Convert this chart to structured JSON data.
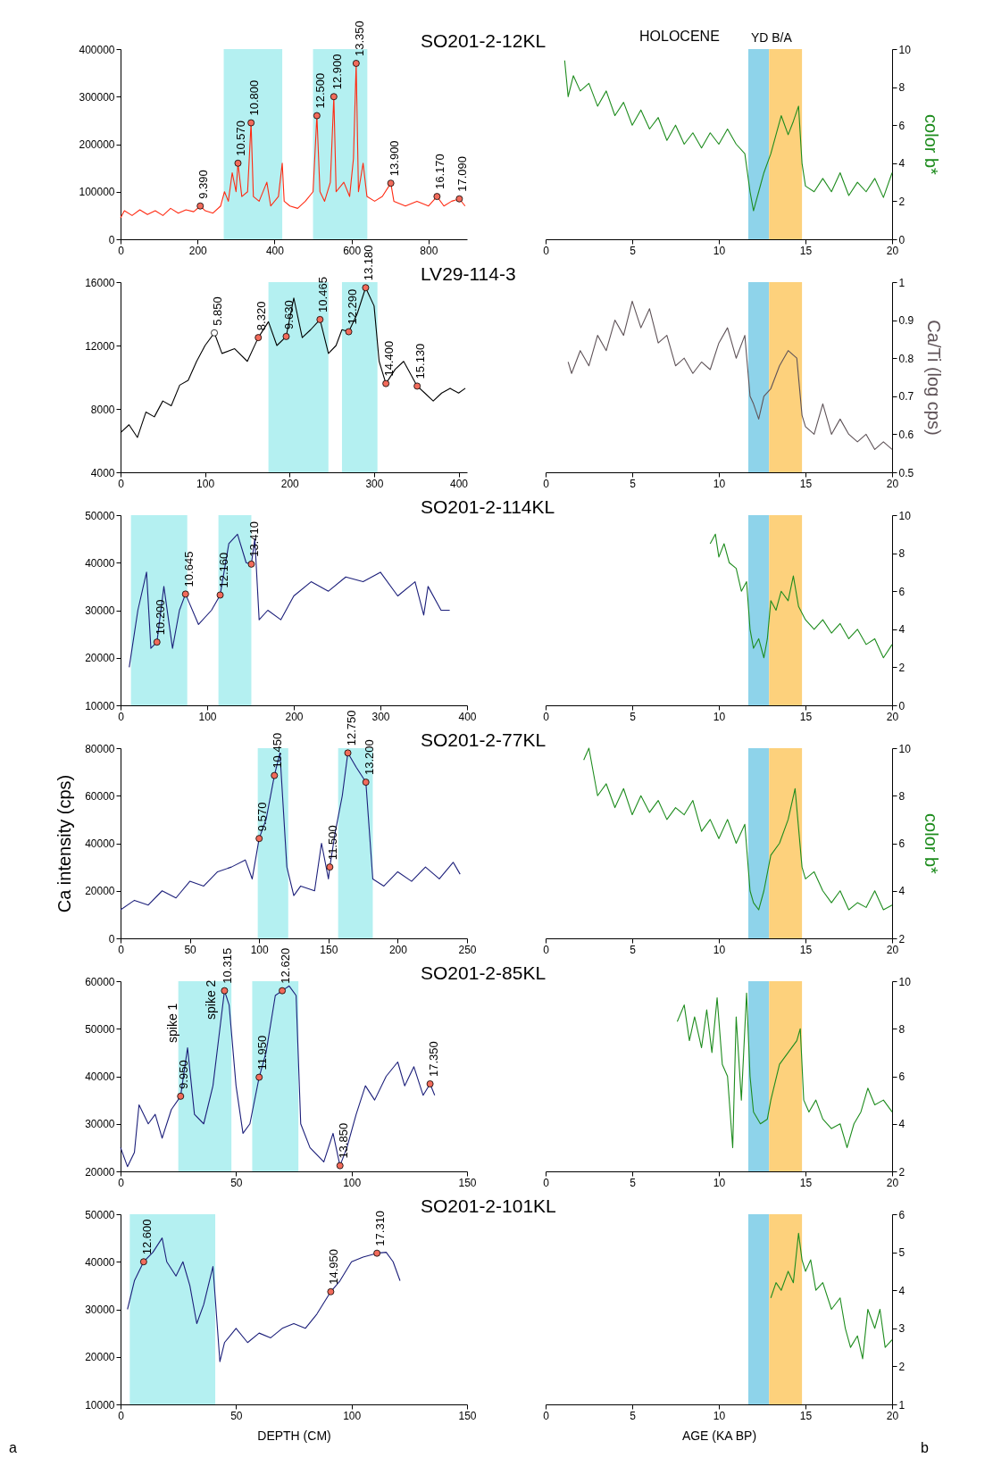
{
  "chart_data": [
    {
      "type": "line",
      "title": "SO201-2-12KL",
      "xlim": [
        0,
        900
      ],
      "xticks": [
        0,
        200,
        400,
        600,
        800
      ],
      "ylim": [
        0,
        400000
      ],
      "yticks": [
        0,
        100000,
        200000,
        300000,
        400000
      ],
      "bands": [
        {
          "axis": "x",
          "from": 268,
          "to": 420,
          "color": "#b4f0f1"
        },
        {
          "axis": "x",
          "from": 500,
          "to": 641,
          "color": "#b4f0f1"
        }
      ],
      "series": [
        {
          "type": "line",
          "color": "#ff2a12",
          "x": [
            0,
            10,
            30,
            50,
            70,
            90,
            110,
            130,
            150,
            170,
            190,
            207,
            220,
            240,
            260,
            270,
            280,
            290,
            300,
            305,
            315,
            330,
            339,
            345,
            360,
            380,
            390,
            410,
            420,
            425,
            440,
            460,
            480,
            500,
            510,
            518,
            530,
            545,
            554,
            560,
            580,
            595,
            605,
            612,
            618,
            630,
            640,
            660,
            680,
            702,
            710,
            740,
            770,
            800,
            822,
            840,
            860,
            880,
            895
          ],
          "values": [
            45000,
            60000,
            50000,
            62000,
            52000,
            60000,
            50000,
            65000,
            55000,
            62000,
            58000,
            70000,
            60000,
            55000,
            70000,
            100000,
            80000,
            140000,
            100000,
            160000,
            90000,
            100000,
            245000,
            90000,
            80000,
            120000,
            70000,
            90000,
            160000,
            80000,
            70000,
            65000,
            80000,
            100000,
            260000,
            100000,
            80000,
            120000,
            300000,
            100000,
            120000,
            90000,
            170000,
            370000,
            100000,
            160000,
            90000,
            80000,
            90000,
            118000,
            80000,
            70000,
            80000,
            70000,
            90000,
            70000,
            80000,
            85000,
            70000
          ]
        },
        {
          "type": "scatter",
          "marker": "circle",
          "colors": [
            "#f26b5b",
            "#f26b5b",
            "#f26b5b",
            "#f26b5b",
            "#f26b5b",
            "#f26b5b",
            "#f26b5b",
            "#f26b5b",
            "#f26b5b"
          ],
          "x": [
            207,
            305,
            339,
            510,
            554,
            612,
            702,
            822,
            880
          ],
          "values": [
            70000,
            160000,
            245000,
            260000,
            300000,
            370000,
            118000,
            90000,
            85000
          ]
        }
      ],
      "annotations": [
        {
          "text": "9.390",
          "x": 207,
          "y": 70000
        },
        {
          "text": "10.570",
          "x": 305,
          "y": 160000
        },
        {
          "text": "10.800",
          "x": 339,
          "y": 245000
        },
        {
          "text": "12.500",
          "x": 510,
          "y": 260000
        },
        {
          "text": "12.900",
          "x": 554,
          "y": 300000
        },
        {
          "text": "13.350",
          "x": 612,
          "y": 370000
        },
        {
          "text": "13.900",
          "x": 702,
          "y": 118000
        },
        {
          "text": "16.170",
          "x": 822,
          "y": 90000
        },
        {
          "text": "17.090",
          "x": 880,
          "y": 85000
        }
      ]
    },
    {
      "type": "line",
      "xlim": [
        0,
        20
      ],
      "xticks": [
        0,
        5,
        10,
        15,
        20
      ],
      "y2lim": [
        0,
        10
      ],
      "y2ticks": [
        0,
        2,
        4,
        6,
        8,
        10
      ],
      "y2label": "color b*",
      "annotations": [
        "HOLOCENE"
      ],
      "bands": [
        {
          "axis": "x",
          "from": 11.7,
          "to": 12.9,
          "label": "YD",
          "color": "#8ed3ea"
        },
        {
          "axis": "x",
          "from": 12.9,
          "to": 14.8,
          "label": "B/A",
          "color": "#fdd17c"
        }
      ],
      "series": [
        {
          "type": "line",
          "axis": "y2",
          "color": "#1e8c1e",
          "x": [
            1.1,
            1.3,
            1.6,
            2,
            2.5,
            3,
            3.5,
            4,
            4.5,
            5,
            5.5,
            6,
            6.5,
            7,
            7.5,
            8,
            8.5,
            9,
            9.5,
            10,
            10.5,
            11,
            11.5,
            11.8,
            12,
            12.3,
            12.6,
            13,
            13.3,
            13.6,
            14,
            14.3,
            14.6,
            14.8,
            15,
            15.5,
            16,
            16.5,
            17,
            17.5,
            18,
            18.5,
            19,
            19.5,
            20
          ],
          "values": [
            9.4,
            7.5,
            8.6,
            7.8,
            8.2,
            7,
            7.8,
            6.5,
            7.2,
            6,
            6.8,
            5.8,
            6.4,
            5.2,
            6,
            5,
            5.6,
            4.8,
            5.6,
            5,
            5.8,
            5,
            4.5,
            2.5,
            1.5,
            2.5,
            3.5,
            4.5,
            5.5,
            6.5,
            5.5,
            6.2,
            7,
            4,
            2.8,
            2.5,
            3.2,
            2.5,
            3.5,
            2.3,
            3,
            2.5,
            3.2,
            2.2,
            3.5
          ]
        }
      ]
    },
    {
      "type": "line",
      "title": "LV29-114-3",
      "xlim": [
        0,
        410
      ],
      "xticks": [
        0,
        100,
        200,
        300,
        400
      ],
      "ylim": [
        4000,
        16000
      ],
      "yticks": [
        4000,
        8000,
        12000,
        16000
      ],
      "bands": [
        {
          "axis": "x",
          "from": 175,
          "to": 246,
          "color": "#b4f0f1"
        },
        {
          "axis": "x",
          "from": 262,
          "to": 304,
          "color": "#b4f0f1"
        }
      ],
      "series": [
        {
          "type": "line",
          "color": "#000000",
          "x": [
            0,
            10,
            20,
            30,
            40,
            50,
            60,
            70,
            80,
            90,
            100,
            111,
            120,
            135,
            150,
            163,
            175,
            185,
            196,
            205,
            215,
            225,
            236,
            246,
            255,
            262,
            270,
            280,
            290,
            300,
            306,
            314,
            325,
            335,
            351,
            360,
            370,
            380,
            390,
            400,
            408
          ],
          "values": [
            6500,
            7000,
            6200,
            7800,
            7500,
            8500,
            8200,
            9500,
            9800,
            11000,
            12000,
            12800,
            11500,
            11800,
            11000,
            12500,
            13500,
            12000,
            12570,
            15000,
            12500,
            13000,
            13640,
            11500,
            12000,
            13000,
            12870,
            14000,
            15650,
            14500,
            11000,
            9600,
            10500,
            11000,
            9440,
            9000,
            8500,
            9000,
            9300,
            9000,
            9300
          ]
        },
        {
          "type": "scatter",
          "marker": "circle",
          "colors": [
            "#ffffff",
            "#f26b5b",
            "#f26b5b",
            "#f26b5b",
            "#f26b5b",
            "#f26b5b",
            "#f26b5b",
            "#f26b5b"
          ],
          "x": [
            111,
            163,
            196,
            236,
            270,
            290,
            314,
            351
          ],
          "values": [
            12800,
            12500,
            12570,
            13640,
            12870,
            15650,
            9600,
            9440
          ]
        }
      ],
      "annotations": [
        {
          "text": "5.850",
          "x": 111,
          "y": 12800
        },
        {
          "text": "8.320",
          "x": 163,
          "y": 12500
        },
        {
          "text": "9.630",
          "x": 196,
          "y": 12570
        },
        {
          "text": "10.465",
          "x": 236,
          "y": 13640
        },
        {
          "text": "12.290",
          "x": 270,
          "y": 12870
        },
        {
          "text": "13.180",
          "x": 290,
          "y": 15650
        },
        {
          "text": "14.400",
          "x": 314,
          "y": 9600
        },
        {
          "text": "15.130",
          "x": 351,
          "y": 9440
        }
      ]
    },
    {
      "type": "line",
      "xlim": [
        0,
        20
      ],
      "xticks": [
        0,
        5,
        10,
        15,
        20
      ],
      "y2lim": [
        0.5,
        1
      ],
      "y2ticks": [
        0.5,
        0.6,
        0.7,
        0.8,
        0.9,
        1
      ],
      "y2label": "Ca/Ti  (log cps)",
      "bands": [
        {
          "axis": "x",
          "from": 11.7,
          "to": 12.9,
          "color": "#8ed3ea"
        },
        {
          "axis": "x",
          "from": 12.9,
          "to": 14.8,
          "color": "#fdd17c"
        }
      ],
      "series": [
        {
          "type": "line",
          "axis": "y2",
          "color": "#5f5358",
          "x": [
            1.3,
            1.5,
            2,
            2.5,
            3,
            3.5,
            4,
            4.5,
            5,
            5.5,
            6,
            6.5,
            7,
            7.5,
            8,
            8.5,
            9,
            9.5,
            10,
            10.5,
            11,
            11.5,
            11.8,
            12,
            12.3,
            12.6,
            13,
            13.5,
            14,
            14.5,
            14.8,
            15,
            15.5,
            16,
            16.5,
            17,
            17.5,
            18,
            18.5,
            19,
            19.5,
            20
          ],
          "values": [
            0.79,
            0.76,
            0.82,
            0.78,
            0.86,
            0.82,
            0.9,
            0.86,
            0.95,
            0.88,
            0.93,
            0.84,
            0.86,
            0.78,
            0.8,
            0.76,
            0.79,
            0.77,
            0.84,
            0.88,
            0.8,
            0.86,
            0.7,
            0.68,
            0.64,
            0.7,
            0.72,
            0.78,
            0.82,
            0.8,
            0.65,
            0.62,
            0.6,
            0.68,
            0.6,
            0.64,
            0.6,
            0.58,
            0.6,
            0.56,
            0.58,
            0.56
          ]
        }
      ]
    },
    {
      "type": "line",
      "title": "SO201-2-114KL",
      "xlim": [
        0,
        400
      ],
      "xticks": [
        0,
        100,
        200,
        300,
        400
      ],
      "ylim": [
        10000,
        50000
      ],
      "yticks": [
        10000,
        20000,
        30000,
        40000,
        50000
      ],
      "bands": [
        {
          "axis": "x",
          "from": 12,
          "to": 77,
          "color": "#b4f0f1"
        },
        {
          "axis": "x",
          "from": 113,
          "to": 151,
          "color": "#b4f0f1"
        }
      ],
      "series": [
        {
          "type": "line",
          "color": "#1c1f7a",
          "x": [
            10,
            20,
            30,
            35,
            42,
            50,
            60,
            68,
            75,
            90,
            105,
            115,
            125,
            135,
            145,
            151,
            155,
            160,
            170,
            185,
            200,
            220,
            240,
            260,
            280,
            300,
            320,
            340,
            350,
            355,
            370,
            380
          ],
          "values": [
            18000,
            30000,
            38000,
            22000,
            23300,
            35000,
            22000,
            30000,
            33400,
            27000,
            30000,
            33200,
            44000,
            46000,
            40000,
            39700,
            45000,
            28000,
            30000,
            28000,
            33000,
            36000,
            34000,
            37000,
            36000,
            38000,
            33000,
            36000,
            29000,
            35000,
            30000,
            30000
          ]
        },
        {
          "type": "scatter",
          "marker": "circle",
          "colors": [
            "#f26b5b",
            "#f26b5b",
            "#f26b5b",
            "#f26b5b"
          ],
          "x": [
            42,
            75,
            115,
            151
          ],
          "values": [
            23300,
            33400,
            33200,
            39700
          ]
        }
      ],
      "annotations": [
        {
          "text": "10.200",
          "x": 42,
          "y": 23300
        },
        {
          "text": "10.645",
          "x": 75,
          "y": 33400
        },
        {
          "text": "12.160",
          "x": 115,
          "y": 33200
        },
        {
          "text": "13.410",
          "x": 151,
          "y": 39700
        }
      ]
    },
    {
      "type": "line",
      "xlim": [
        0,
        20
      ],
      "xticks": [
        0,
        5,
        10,
        15,
        20
      ],
      "y2lim": [
        0,
        10
      ],
      "y2ticks": [
        0,
        2,
        4,
        6,
        8,
        10
      ],
      "bands": [
        {
          "axis": "x",
          "from": 11.7,
          "to": 12.9,
          "color": "#8ed3ea"
        },
        {
          "axis": "x",
          "from": 12.9,
          "to": 14.8,
          "color": "#fdd17c"
        }
      ],
      "series": [
        {
          "type": "line",
          "axis": "y2",
          "color": "#1e8c1e",
          "x": [
            9.5,
            9.8,
            10,
            10.3,
            10.6,
            11,
            11.3,
            11.6,
            11.8,
            12,
            12.3,
            12.6,
            12.8,
            13,
            13.3,
            13.6,
            14,
            14.3,
            14.6,
            15,
            15.5,
            16,
            16.5,
            17,
            17.5,
            18,
            18.5,
            19,
            19.5,
            20
          ],
          "values": [
            8.5,
            9,
            7.8,
            8.5,
            7.5,
            7.2,
            6,
            6.5,
            4,
            3,
            3.5,
            2.5,
            3.5,
            5.5,
            5,
            6,
            5.5,
            6.8,
            5.2,
            4.5,
            4,
            4.5,
            3.8,
            4.3,
            3.5,
            4,
            3.2,
            3.5,
            2.5,
            3.2
          ]
        }
      ]
    },
    {
      "type": "line",
      "title": "SO201-2-77KL",
      "ylabel": "Ca intensity (cps)",
      "xlim": [
        0,
        250
      ],
      "xticks": [
        0,
        50,
        100,
        150,
        200,
        250
      ],
      "ylim": [
        0,
        80000
      ],
      "yticks": [
        0,
        20000,
        40000,
        60000,
        80000
      ],
      "bands": [
        {
          "axis": "x",
          "from": 99,
          "to": 121,
          "color": "#b4f0f1"
        },
        {
          "axis": "x",
          "from": 157,
          "to": 182,
          "color": "#b4f0f1"
        }
      ],
      "series": [
        {
          "type": "line",
          "color": "#1c1f7a",
          "x": [
            0,
            10,
            20,
            30,
            40,
            50,
            60,
            70,
            80,
            90,
            95,
            100,
            105,
            111,
            115,
            120,
            125,
            130,
            140,
            145,
            150,
            151,
            155,
            160,
            164,
            170,
            177,
            182,
            190,
            200,
            210,
            220,
            230,
            240,
            245
          ],
          "values": [
            12000,
            16000,
            14000,
            20000,
            17000,
            24000,
            22000,
            28000,
            30000,
            33000,
            25000,
            42000,
            50000,
            68500,
            78000,
            30000,
            18000,
            22000,
            20000,
            40000,
            25000,
            30000,
            45000,
            60000,
            78000,
            72000,
            65700,
            25000,
            22000,
            28000,
            24000,
            30000,
            25000,
            32000,
            27000
          ]
        },
        {
          "type": "scatter",
          "marker": "circle",
          "colors": [
            "#f26b5b",
            "#f26b5b",
            "#f26b5b",
            "#f26b5b",
            "#f26b5b"
          ],
          "x": [
            100,
            111,
            151,
            164,
            177
          ],
          "values": [
            42000,
            68500,
            30000,
            78000,
            65700
          ]
        }
      ],
      "annotations": [
        {
          "text": "9.570",
          "x": 100,
          "y": 42000
        },
        {
          "text": "10.450",
          "x": 111,
          "y": 68500
        },
        {
          "text": "11.500",
          "x": 151,
          "y": 30000
        },
        {
          "text": "12.750",
          "x": 164,
          "y": 78000
        },
        {
          "text": "13.200",
          "x": 177,
          "y": 65700
        }
      ]
    },
    {
      "type": "line",
      "xlim": [
        0,
        20
      ],
      "xticks": [
        0,
        5,
        10,
        15,
        20
      ],
      "y2lim": [
        2,
        10
      ],
      "y2ticks": [
        2,
        4,
        6,
        8,
        10
      ],
      "y2label": "color b*",
      "bands": [
        {
          "axis": "x",
          "from": 11.7,
          "to": 12.9,
          "color": "#8ed3ea"
        },
        {
          "axis": "x",
          "from": 12.9,
          "to": 14.8,
          "color": "#fdd17c"
        }
      ],
      "series": [
        {
          "type": "line",
          "axis": "y2",
          "color": "#1e8c1e",
          "x": [
            2.2,
            2.5,
            3,
            3.5,
            4,
            4.5,
            5,
            5.5,
            6,
            6.5,
            7,
            7.5,
            8,
            8.5,
            9,
            9.5,
            10,
            10.5,
            11,
            11.5,
            11.8,
            12,
            12.3,
            12.6,
            13,
            13.5,
            14,
            14.4,
            14.8,
            15,
            15.5,
            16,
            16.5,
            17,
            17.5,
            18,
            18.5,
            19,
            19.5,
            20
          ],
          "values": [
            9.5,
            10,
            8,
            8.5,
            7.5,
            8.3,
            7.2,
            8,
            7.3,
            7.8,
            7,
            7.5,
            7.2,
            7.8,
            6.5,
            7,
            6.2,
            7,
            6,
            6.8,
            4,
            3.5,
            3.2,
            4,
            5.5,
            6,
            7,
            8.3,
            5,
            4.5,
            4.8,
            4,
            3.5,
            4,
            3.2,
            3.5,
            3.3,
            4,
            3.2,
            3.4
          ]
        }
      ]
    },
    {
      "type": "line",
      "title": "SO201-2-85KL",
      "xlim": [
        0,
        150
      ],
      "xticks": [
        0,
        50,
        100,
        150
      ],
      "ylim": [
        20000,
        60000
      ],
      "yticks": [
        20000,
        30000,
        40000,
        50000,
        60000
      ],
      "annotations": [
        "spike 1",
        "spike 2",
        {
          "text": "9.950",
          "x": 26,
          "y": 35800
        },
        {
          "text": "10.315",
          "x": 45,
          "y": 58000
        },
        {
          "text": "11.950",
          "x": 60,
          "y": 39800
        },
        {
          "text": "12.620",
          "x": 70,
          "y": 58000
        },
        {
          "text": "13.850",
          "x": 95,
          "y": 21200
        },
        {
          "text": "17.350",
          "x": 134,
          "y": 38400
        }
      ],
      "bands": [
        {
          "axis": "x",
          "from": 25,
          "to": 48,
          "color": "#b4f0f1"
        },
        {
          "axis": "x",
          "from": 57,
          "to": 77,
          "color": "#b4f0f1"
        }
      ],
      "series": [
        {
          "type": "line",
          "color": "#1c1f7a",
          "x": [
            0,
            3,
            6,
            8,
            12,
            15,
            18,
            22,
            26,
            29,
            32,
            36,
            40,
            43,
            45,
            47,
            50,
            53,
            56,
            60,
            63,
            67,
            70,
            73,
            76,
            78,
            82,
            88,
            92,
            95,
            98,
            102,
            106,
            110,
            115,
            120,
            123,
            127,
            131,
            134,
            136
          ],
          "values": [
            25000,
            21000,
            24000,
            34000,
            30000,
            32000,
            27000,
            33000,
            35800,
            46000,
            32000,
            30000,
            38000,
            50000,
            58000,
            55000,
            38000,
            28000,
            30000,
            39800,
            45000,
            57000,
            58000,
            59000,
            57000,
            30000,
            25000,
            22000,
            28000,
            21200,
            25000,
            32000,
            38000,
            35000,
            40000,
            43000,
            38000,
            42000,
            36000,
            38400,
            36000
          ]
        },
        {
          "type": "scatter",
          "marker": "circle",
          "colors": [
            "#f26b5b",
            "#f26b5b",
            "#f26b5b",
            "#f26b5b",
            "#f26b5b",
            "#f26b5b"
          ],
          "x": [
            26,
            45,
            60,
            70,
            95,
            134
          ],
          "values": [
            35800,
            58000,
            39800,
            58000,
            21200,
            38400
          ]
        }
      ]
    },
    {
      "type": "line",
      "xlim": [
        0,
        20
      ],
      "xticks": [
        0,
        5,
        10,
        15,
        20
      ],
      "y2lim": [
        2,
        10
      ],
      "y2ticks": [
        2,
        4,
        6,
        8,
        10
      ],
      "bands": [
        {
          "axis": "x",
          "from": 11.7,
          "to": 12.9,
          "color": "#8ed3ea"
        },
        {
          "axis": "x",
          "from": 12.9,
          "to": 14.8,
          "color": "#fdd17c"
        }
      ],
      "series": [
        {
          "type": "line",
          "axis": "y2",
          "color": "#1e8c1e",
          "x": [
            7.6,
            8,
            8.3,
            8.6,
            9,
            9.3,
            9.6,
            9.9,
            10.2,
            10.5,
            10.8,
            11,
            11.3,
            11.6,
            11.8,
            12,
            12.4,
            12.8,
            13,
            13.5,
            14,
            14.5,
            14.7,
            14.9,
            15.2,
            15.6,
            16,
            16.5,
            17,
            17.4,
            17.8,
            18.2,
            18.6,
            19,
            19.5,
            20
          ],
          "values": [
            8.3,
            9,
            7.5,
            8.5,
            7.2,
            8.8,
            7,
            9.3,
            6.5,
            6,
            3,
            8.5,
            5,
            9.5,
            6,
            4.5,
            4,
            4.2,
            5,
            6.5,
            7,
            7.5,
            8,
            5,
            4.5,
            5,
            4.2,
            3.8,
            4,
            3,
            4,
            4.5,
            5.5,
            4.8,
            5,
            4.5
          ]
        }
      ]
    },
    {
      "type": "line",
      "title": "SO201-2-101KL",
      "xlabel": "DEPTH (CM)",
      "xlim": [
        0,
        150
      ],
      "xticks": [
        0,
        50,
        100,
        150
      ],
      "ylim": [
        10000,
        50000
      ],
      "yticks": [
        10000,
        20000,
        30000,
        40000,
        50000
      ],
      "bands": [
        {
          "axis": "x",
          "from": 4,
          "to": 41,
          "color": "#b4f0f1"
        }
      ],
      "series": [
        {
          "type": "line",
          "color": "#1c1f7a",
          "x": [
            3,
            6,
            10,
            14,
            18,
            20,
            24,
            27,
            30,
            33,
            36,
            40,
            43,
            45,
            50,
            55,
            60,
            65,
            70,
            75,
            80,
            85,
            91,
            95,
            100,
            105,
            111,
            115,
            118,
            121
          ],
          "values": [
            30000,
            36000,
            40000,
            42000,
            45000,
            40000,
            37000,
            40000,
            35000,
            27000,
            31000,
            39000,
            19000,
            23000,
            26000,
            23000,
            25000,
            24000,
            26000,
            27000,
            26000,
            29000,
            33700,
            36000,
            40000,
            41000,
            41800,
            42000,
            40000,
            36000
          ]
        },
        {
          "type": "scatter",
          "marker": "circle",
          "colors": [
            "#f26b5b",
            "#f26b5b",
            "#f26b5b"
          ],
          "x": [
            10,
            91,
            111
          ],
          "values": [
            40000,
            33700,
            41800
          ]
        }
      ],
      "annotations": [
        "a",
        {
          "text": "12.600",
          "x": 10,
          "y": 40000
        },
        {
          "text": "14.950",
          "x": 91,
          "y": 33700
        },
        {
          "text": "17.310",
          "x": 111,
          "y": 41800
        }
      ]
    },
    {
      "type": "line",
      "xlabel": "AGE (KA BP)",
      "annotations": [
        "b"
      ],
      "xlim": [
        0,
        20
      ],
      "xticks": [
        0,
        5,
        10,
        15,
        20
      ],
      "y2lim": [
        1,
        6
      ],
      "y2ticks": [
        1,
        2,
        3,
        4,
        5,
        6
      ],
      "bands": [
        {
          "axis": "x",
          "from": 11.7,
          "to": 12.9,
          "color": "#8ed3ea"
        },
        {
          "axis": "x",
          "from": 12.9,
          "to": 14.8,
          "color": "#fdd17c"
        }
      ],
      "series": [
        {
          "type": "line",
          "axis": "y2",
          "color": "#1e8c1e",
          "x": [
            13,
            13.3,
            13.6,
            14,
            14.3,
            14.6,
            14.8,
            15,
            15.3,
            15.6,
            16,
            16.5,
            17,
            17.3,
            17.6,
            18,
            18.3,
            18.6,
            19,
            19.3,
            19.6,
            20
          ],
          "values": [
            3.8,
            4.2,
            4,
            4.5,
            4.2,
            5.5,
            4.8,
            4.5,
            4.8,
            4,
            4.2,
            3.5,
            3.8,
            3,
            2.5,
            2.8,
            2.2,
            3.5,
            3,
            3.5,
            2.5,
            2.7
          ]
        }
      ]
    }
  ]
}
